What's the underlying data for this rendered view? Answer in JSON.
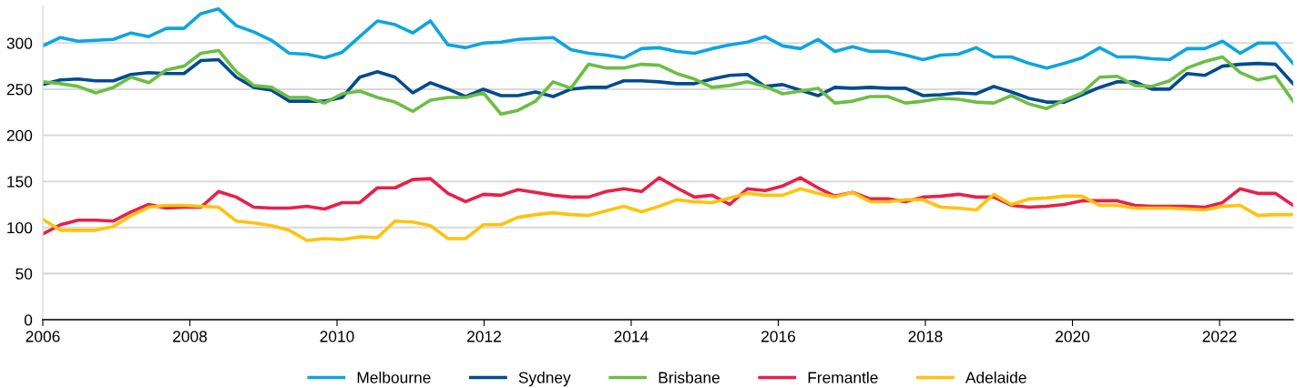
{
  "chart_data": {
    "type": "line",
    "x": [
      2006.0,
      2006.24,
      2006.48,
      2006.72,
      2006.96,
      2007.2,
      2007.44,
      2007.68,
      2007.92,
      2008.15,
      2008.39,
      2008.63,
      2008.87,
      2009.11,
      2009.35,
      2009.59,
      2009.83,
      2010.07,
      2010.31,
      2010.55,
      2010.79,
      2011.03,
      2011.27,
      2011.51,
      2011.75,
      2011.99,
      2012.23,
      2012.46,
      2012.7,
      2012.94,
      2013.18,
      2013.42,
      2013.66,
      2013.9,
      2014.14,
      2014.38,
      2014.62,
      2014.86,
      2015.1,
      2015.34,
      2015.58,
      2015.82,
      2016.06,
      2016.3,
      2016.54,
      2016.77,
      2017.01,
      2017.25,
      2017.49,
      2017.73,
      2017.97,
      2018.21,
      2018.45,
      2018.69,
      2018.93,
      2019.17,
      2019.41,
      2019.65,
      2019.89,
      2020.13,
      2020.37,
      2020.61,
      2020.85,
      2021.08,
      2021.32,
      2021.56,
      2021.8,
      2022.04,
      2022.28,
      2022.52,
      2022.76,
      2023.0
    ],
    "series": [
      {
        "name": "Melbourne",
        "color": "#0ea5de",
        "values": [
          297,
          306,
          302,
          303,
          304,
          311,
          307,
          316,
          316,
          332,
          337,
          319,
          312,
          303,
          289,
          288,
          284,
          290,
          307,
          324,
          320,
          311,
          324,
          298,
          295,
          300,
          301,
          304,
          305,
          306,
          293,
          289,
          287,
          284,
          294,
          295,
          291,
          289,
          294,
          298,
          301,
          307,
          297,
          294,
          304,
          291,
          296,
          291,
          291,
          287,
          282,
          287,
          288,
          295,
          285,
          285,
          278,
          273,
          278,
          284,
          295,
          285,
          285,
          283,
          282,
          294,
          294,
          302,
          289,
          300,
          300,
          278
        ]
      },
      {
        "name": "Sydney",
        "color": "#004b8d",
        "values": [
          255,
          260,
          261,
          259,
          259,
          266,
          268,
          267,
          267,
          281,
          282,
          263,
          252,
          249,
          237,
          237,
          237,
          241,
          263,
          269,
          263,
          246,
          257,
          250,
          242,
          250,
          243,
          243,
          247,
          242,
          250,
          252,
          252,
          259,
          259,
          258,
          256,
          256,
          261,
          265,
          266,
          253,
          255,
          249,
          243,
          252,
          251,
          252,
          251,
          251,
          243,
          244,
          246,
          245,
          253,
          247,
          240,
          236,
          236,
          244,
          252,
          258,
          258,
          250,
          250,
          267,
          265,
          275,
          277,
          278,
          277,
          256
        ]
      },
      {
        "name": "Brisbane",
        "color": "#6cbd45",
        "values": [
          258,
          256,
          253,
          246,
          252,
          263,
          257,
          271,
          275,
          289,
          292,
          269,
          254,
          252,
          241,
          241,
          235,
          245,
          248,
          241,
          236,
          226,
          238,
          241,
          241,
          246,
          223,
          227,
          237,
          258,
          251,
          277,
          273,
          273,
          277,
          276,
          267,
          261,
          252,
          254,
          258,
          253,
          245,
          248,
          251,
          235,
          237,
          242,
          242,
          235,
          237,
          240,
          239,
          236,
          235,
          243,
          234,
          229,
          238,
          246,
          263,
          264,
          254,
          253,
          259,
          273,
          280,
          285,
          268,
          260,
          264,
          237
        ]
      },
      {
        "name": "Fremantle",
        "color": "#e8204a",
        "values": [
          93,
          103,
          108,
          108,
          107,
          117,
          125,
          121,
          122,
          122,
          139,
          133,
          122,
          121,
          121,
          123,
          120,
          127,
          127,
          143,
          143,
          152,
          153,
          137,
          128,
          136,
          135,
          141,
          138,
          135,
          133,
          133,
          139,
          142,
          139,
          154,
          143,
          133,
          135,
          125,
          142,
          140,
          145,
          154,
          143,
          134,
          138,
          131,
          131,
          128,
          133,
          134,
          136,
          133,
          133,
          124,
          122,
          123,
          125,
          129,
          129,
          129,
          124,
          123,
          123,
          123,
          122,
          127,
          142,
          137,
          137,
          124
        ]
      },
      {
        "name": "Adelaide",
        "color": "#ffc20e",
        "values": [
          109,
          97,
          97,
          97,
          101,
          113,
          122,
          124,
          124,
          123,
          122,
          107,
          105,
          102,
          97,
          86,
          88,
          87,
          90,
          89,
          107,
          106,
          102,
          88,
          88,
          103,
          103,
          111,
          114,
          116,
          114,
          113,
          118,
          123,
          117,
          123,
          130,
          128,
          127,
          132,
          137,
          135,
          135,
          142,
          137,
          133,
          138,
          128,
          128,
          130,
          130,
          122,
          121,
          119,
          136,
          125,
          131,
          132,
          134,
          134,
          124,
          124,
          121,
          121,
          121,
          120,
          119,
          123,
          124,
          113,
          114,
          114
        ]
      }
    ],
    "xlim": [
      2006,
      2023
    ],
    "xticks": [
      2006,
      2008,
      2010,
      2012,
      2014,
      2016,
      2018,
      2020,
      2022
    ],
    "ylim": [
      0,
      340
    ],
    "yticks": [
      0,
      50,
      100,
      150,
      200,
      250,
      300
    ],
    "grid": "y",
    "legend": "bottom",
    "marker": "none",
    "line_style": "solid"
  }
}
